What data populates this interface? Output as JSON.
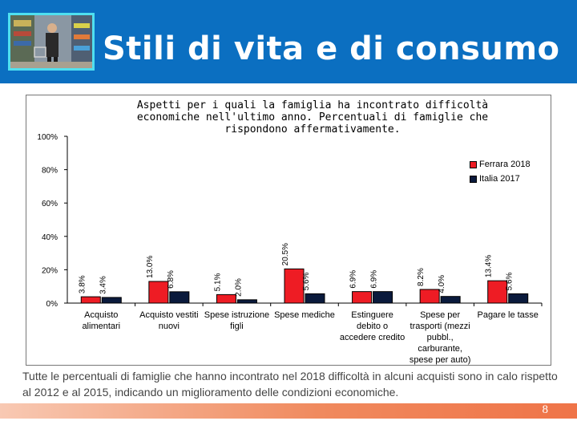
{
  "header": {
    "title": "Stili di vita e di consumo",
    "bg_color": "#0b6fc1"
  },
  "chart_data": {
    "type": "bar",
    "title": "Aspetti per i quali la famiglia ha incontrato difficoltà economiche nell'ultimo anno. Percentuali di famiglie che rispondono affermativamente.",
    "categories": [
      "Acquisto alimentari",
      "Acquisto vestiti nuovi",
      "Spese istruzione figli",
      "Spese mediche",
      "Estinguere debito o accedere credito",
      "Spese per trasporti (mezzi pubbl., carburante, spese per auto)",
      "Pagare le tasse"
    ],
    "series": [
      {
        "name": "Ferrara 2018",
        "color": "#ee1c24",
        "values": [
          3.8,
          13.0,
          5.1,
          20.5,
          6.9,
          8.2,
          13.4
        ]
      },
      {
        "name": "Italia 2017",
        "color": "#0a1a3c",
        "values": [
          3.4,
          6.8,
          2.0,
          5.6,
          6.9,
          4.0,
          5.6
        ]
      }
    ],
    "data_labels": [
      [
        "3.8%",
        "13.0%",
        "5.1%",
        "20.5%",
        "6.9%",
        "8.2%",
        "13.4%"
      ],
      [
        "3.4%",
        "6.8%",
        "2.0%",
        "5.6%",
        "6.9%",
        "4.0%",
        "5.6%"
      ]
    ],
    "y_ticks": [
      "0%",
      "20%",
      "40%",
      "60%",
      "80%",
      "100%"
    ],
    "ylim": [
      0,
      100
    ],
    "xlabel": "",
    "ylabel": "",
    "legend_position": "top-right",
    "grid": false
  },
  "caption": "Tutte le percentuali di famiglie che hanno incontrato nel 2018 difficoltà in alcuni acquisti sono in calo rispetto al 2012 e al 2015, indicando un miglioramento delle condizioni economiche.",
  "footer": {
    "page_number": "8"
  }
}
